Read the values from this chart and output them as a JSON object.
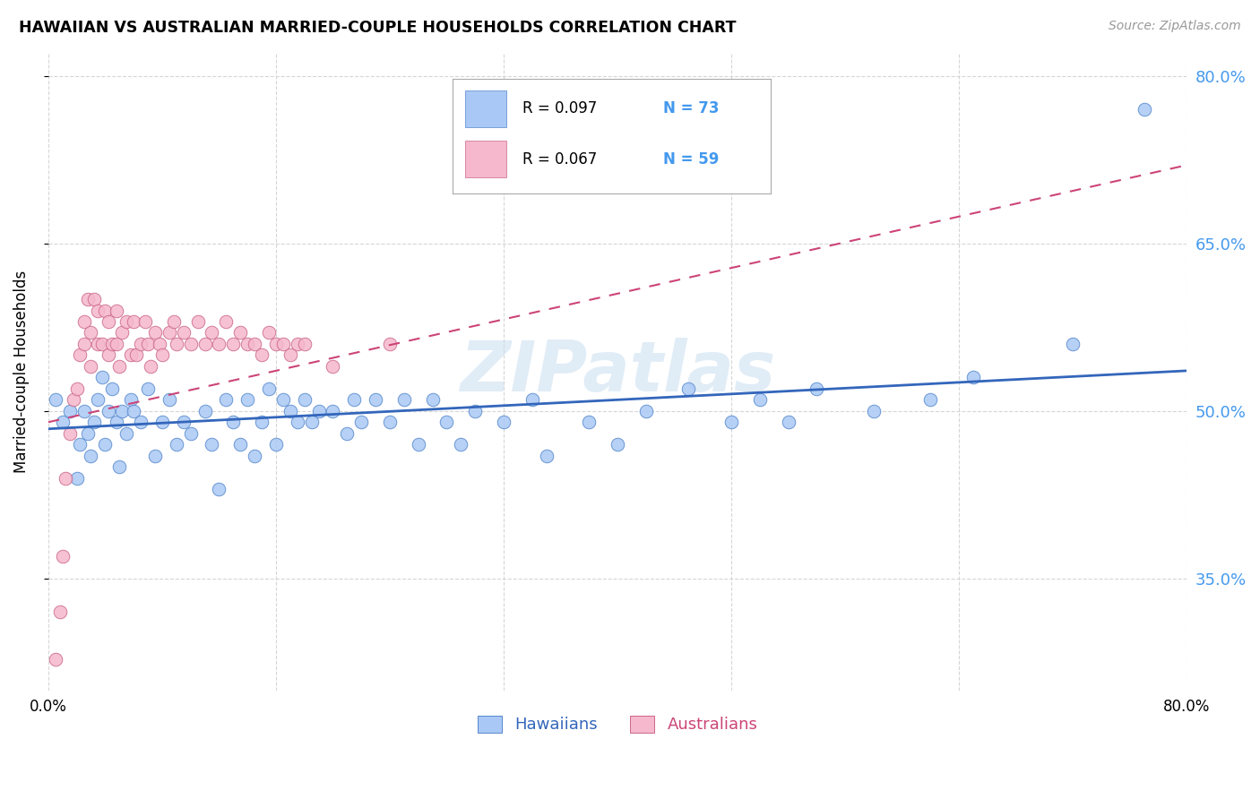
{
  "title": "HAWAIIAN VS AUSTRALIAN MARRIED-COUPLE HOUSEHOLDS CORRELATION CHART",
  "source": "Source: ZipAtlas.com",
  "ylabel": "Married-couple Households",
  "watermark": "ZIPatlas",
  "hawaiians_color": "#aac8f5",
  "hawaiians_edge_color": "#5588cc",
  "hawaiians_line_color": "#3366bb",
  "australians_color": "#f5b8cc",
  "australians_edge_color": "#cc6688",
  "australians_line_color": "#cc4477",
  "background_color": "#ffffff",
  "legend_r1": "R = 0.097",
  "legend_n1": "N = 73",
  "legend_r2": "R = 0.067",
  "legend_n2": "N = 59",
  "xlim": [
    0.0,
    0.8
  ],
  "ylim": [
    0.25,
    0.82
  ],
  "ytick_vals": [
    0.35,
    0.5,
    0.65,
    0.8
  ],
  "ytick_labels": [
    "35.0%",
    "50.0%",
    "65.0%",
    "80.0%"
  ],
  "xtick_vals": [
    0.0,
    0.16,
    0.32,
    0.48,
    0.64,
    0.8
  ],
  "xtick_labels": [
    "0.0%",
    "",
    "",
    "",
    "",
    "80.0%"
  ],
  "hawaiians_x": [
    0.005,
    0.01,
    0.015,
    0.02,
    0.022,
    0.025,
    0.028,
    0.03,
    0.032,
    0.035,
    0.038,
    0.04,
    0.042,
    0.045,
    0.048,
    0.05,
    0.052,
    0.055,
    0.058,
    0.06,
    0.065,
    0.07,
    0.075,
    0.08,
    0.085,
    0.09,
    0.095,
    0.1,
    0.11,
    0.115,
    0.12,
    0.125,
    0.13,
    0.135,
    0.14,
    0.145,
    0.15,
    0.155,
    0.16,
    0.165,
    0.17,
    0.175,
    0.18,
    0.185,
    0.19,
    0.2,
    0.21,
    0.215,
    0.22,
    0.23,
    0.24,
    0.25,
    0.26,
    0.27,
    0.28,
    0.29,
    0.3,
    0.32,
    0.34,
    0.35,
    0.38,
    0.4,
    0.42,
    0.45,
    0.48,
    0.5,
    0.52,
    0.54,
    0.58,
    0.62,
    0.65,
    0.72,
    0.77
  ],
  "hawaiians_y": [
    0.51,
    0.49,
    0.5,
    0.44,
    0.47,
    0.5,
    0.48,
    0.46,
    0.49,
    0.51,
    0.53,
    0.47,
    0.5,
    0.52,
    0.49,
    0.45,
    0.5,
    0.48,
    0.51,
    0.5,
    0.49,
    0.52,
    0.46,
    0.49,
    0.51,
    0.47,
    0.49,
    0.48,
    0.5,
    0.47,
    0.43,
    0.51,
    0.49,
    0.47,
    0.51,
    0.46,
    0.49,
    0.52,
    0.47,
    0.51,
    0.5,
    0.49,
    0.51,
    0.49,
    0.5,
    0.5,
    0.48,
    0.51,
    0.49,
    0.51,
    0.49,
    0.51,
    0.47,
    0.51,
    0.49,
    0.47,
    0.5,
    0.49,
    0.51,
    0.46,
    0.49,
    0.47,
    0.5,
    0.52,
    0.49,
    0.51,
    0.49,
    0.52,
    0.5,
    0.51,
    0.53,
    0.56,
    0.77
  ],
  "australians_x": [
    0.005,
    0.008,
    0.01,
    0.012,
    0.015,
    0.018,
    0.02,
    0.022,
    0.025,
    0.025,
    0.028,
    0.03,
    0.03,
    0.032,
    0.035,
    0.035,
    0.038,
    0.04,
    0.042,
    0.042,
    0.045,
    0.048,
    0.048,
    0.05,
    0.052,
    0.055,
    0.058,
    0.06,
    0.062,
    0.065,
    0.068,
    0.07,
    0.072,
    0.075,
    0.078,
    0.08,
    0.085,
    0.088,
    0.09,
    0.095,
    0.1,
    0.105,
    0.11,
    0.115,
    0.12,
    0.125,
    0.13,
    0.135,
    0.14,
    0.145,
    0.15,
    0.155,
    0.16,
    0.165,
    0.17,
    0.175,
    0.18,
    0.2,
    0.24
  ],
  "australians_y": [
    0.278,
    0.32,
    0.37,
    0.44,
    0.48,
    0.51,
    0.52,
    0.55,
    0.56,
    0.58,
    0.6,
    0.54,
    0.57,
    0.6,
    0.56,
    0.59,
    0.56,
    0.59,
    0.55,
    0.58,
    0.56,
    0.56,
    0.59,
    0.54,
    0.57,
    0.58,
    0.55,
    0.58,
    0.55,
    0.56,
    0.58,
    0.56,
    0.54,
    0.57,
    0.56,
    0.55,
    0.57,
    0.58,
    0.56,
    0.57,
    0.56,
    0.58,
    0.56,
    0.57,
    0.56,
    0.58,
    0.56,
    0.57,
    0.56,
    0.56,
    0.55,
    0.57,
    0.56,
    0.56,
    0.55,
    0.56,
    0.56,
    0.54,
    0.56
  ],
  "trend_hawaiians_x0": 0.0,
  "trend_hawaiians_x1": 0.8,
  "trend_hawaiians_y0": 0.484,
  "trend_hawaiians_y1": 0.536,
  "trend_australians_x0": 0.0,
  "trend_australians_x1": 0.8,
  "trend_australians_y0": 0.49,
  "trend_australians_y1": 0.72
}
